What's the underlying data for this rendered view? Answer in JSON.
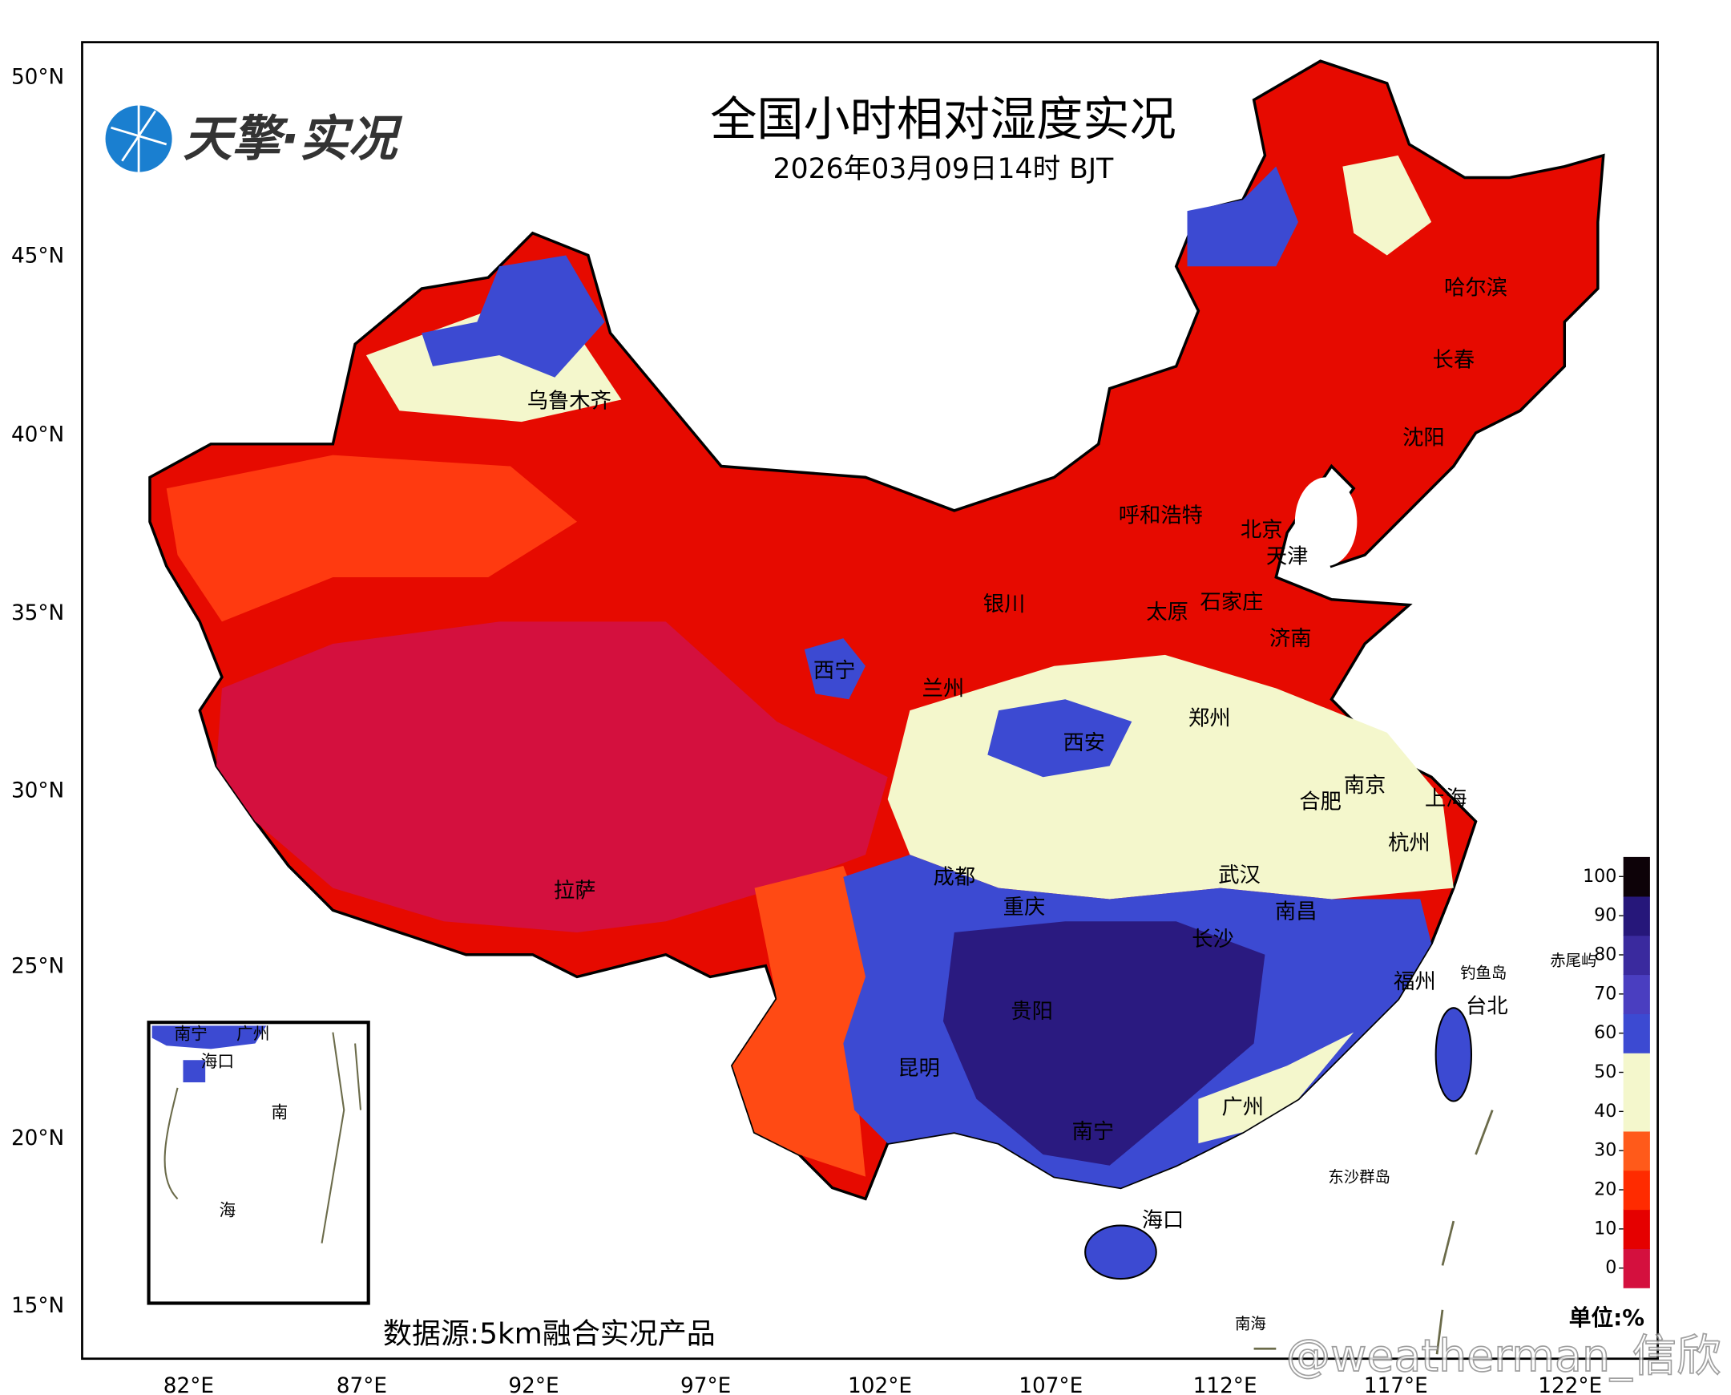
{
  "header": {
    "logo": "天擎·实况",
    "title": "全国小时相对湿度实况",
    "subtitle": "2026年03月09日14时 BJT"
  },
  "lat_labels": [
    "50°N",
    "45°N",
    "40°N",
    "35°N",
    "30°N",
    "25°N",
    "20°N",
    "15°N"
  ],
  "lon_labels": [
    "82°E",
    "87°E",
    "92°E",
    "97°E",
    "102°E",
    "107°E",
    "112°E",
    "117°E",
    "122°E"
  ],
  "cities": [
    "乌鲁木齐",
    "哈尔滨",
    "长春",
    "沈阳",
    "呼和浩特",
    "北京",
    "天津",
    "银川",
    "太原",
    "石家庄",
    "济南",
    "西宁",
    "兰州",
    "郑州",
    "西安",
    "南京",
    "合肥",
    "上海",
    "杭州",
    "成都",
    "武汉",
    "拉萨",
    "重庆",
    "南昌",
    "长沙",
    "钓鱼岛",
    "赤尾屿",
    "福州",
    "台北",
    "贵阳",
    "昆明",
    "广州",
    "南宁",
    "东沙群岛",
    "海口",
    "南海"
  ],
  "inset_labels": [
    "南宁",
    "广州",
    "海口",
    "南",
    "海"
  ],
  "colorbar": {
    "ticks": [
      0,
      10,
      20,
      30,
      40,
      50,
      60,
      70,
      80,
      90,
      100
    ],
    "colors": [
      "#d4103e",
      "#e50000",
      "#ff2b00",
      "#ff5a1a",
      "#f4f7cc",
      "#f4f7cc",
      "#3c4ad2",
      "#4a3ec0",
      "#3a2a9e",
      "#26177a",
      "#0d0208"
    ],
    "unit": "单位:%"
  },
  "source": "数据源:5km融合实况产品",
  "watermark": "@weatherman_信欣"
}
